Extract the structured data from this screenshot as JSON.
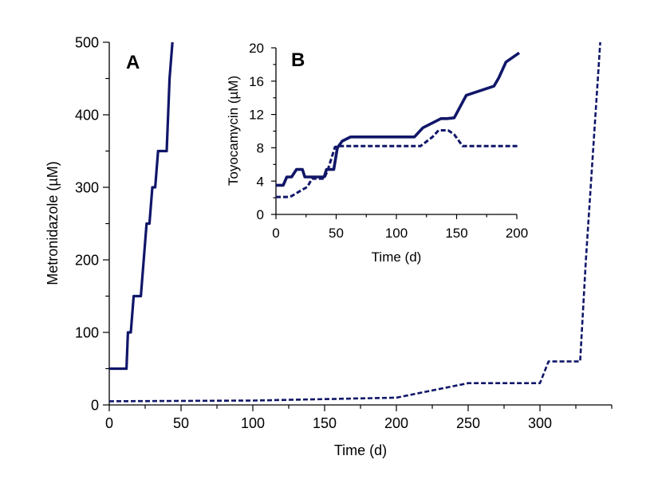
{
  "colors": {
    "series": "#101668",
    "axis": "#000000",
    "background": "#ffffff"
  },
  "chart_data": [
    {
      "panel_label": "A",
      "type": "line",
      "title": "",
      "xlabel": "Time (d)",
      "ylabel": "Metronidazole (µM)",
      "xlim": [
        0,
        350
      ],
      "ylim": [
        0,
        500
      ],
      "xticks": [
        0,
        50,
        100,
        150,
        200,
        250,
        300
      ],
      "yticks": [
        0,
        100,
        200,
        300,
        400,
        500
      ],
      "series": [
        {
          "name": "solid",
          "style": "solid",
          "x": [
            0,
            12,
            13,
            15,
            17,
            19,
            22,
            24,
            26,
            28,
            30,
            32,
            34,
            36,
            37,
            40,
            41,
            42,
            43,
            44
          ],
          "y": [
            50,
            50,
            100,
            100,
            150,
            150,
            150,
            200,
            250,
            250,
            300,
            300,
            350,
            350,
            350,
            350,
            400,
            450,
            475,
            500
          ]
        },
        {
          "name": "dashed",
          "style": "dashed",
          "x": [
            0,
            100,
            200,
            250,
            300,
            306,
            328,
            332,
            342
          ],
          "y": [
            5,
            6,
            10,
            30,
            30,
            60,
            60,
            200,
            500
          ]
        }
      ]
    },
    {
      "panel_label": "B",
      "type": "line",
      "title": "",
      "xlabel": "Time (d)",
      "ylabel": "Toyocamycin (µM)",
      "xlim": [
        0,
        200
      ],
      "ylim": [
        0,
        20
      ],
      "xticks": [
        0,
        50,
        100,
        150,
        200
      ],
      "yticks": [
        0,
        4,
        8,
        12,
        16,
        20
      ],
      "series": [
        {
          "name": "solid",
          "style": "solid",
          "x": [
            0,
            6,
            9,
            13,
            17,
            22,
            24,
            26,
            40,
            42,
            48,
            51,
            55,
            62,
            115,
            122,
            137,
            142,
            148,
            158,
            181,
            185,
            191,
            202
          ],
          "y": [
            3.5,
            3.5,
            4.5,
            4.5,
            5.4,
            5.4,
            4.5,
            4.5,
            4.5,
            5.4,
            5.4,
            8,
            8.8,
            9.3,
            9.3,
            10.4,
            11.5,
            11.5,
            11.6,
            14.3,
            15.4,
            16.4,
            18.3,
            19.4
          ]
        },
        {
          "name": "dashed",
          "style": "dashed",
          "x": [
            0,
            9,
            13,
            20,
            26,
            30,
            35,
            40,
            43,
            49,
            52,
            120,
            130,
            135,
            143,
            148,
            155,
            202
          ],
          "y": [
            2.1,
            2.1,
            2.2,
            2.8,
            3.3,
            4.3,
            4.3,
            4.3,
            5.3,
            8.1,
            8.2,
            8.2,
            9.3,
            10.1,
            10.1,
            9.6,
            8.2,
            8.2
          ]
        }
      ]
    }
  ]
}
